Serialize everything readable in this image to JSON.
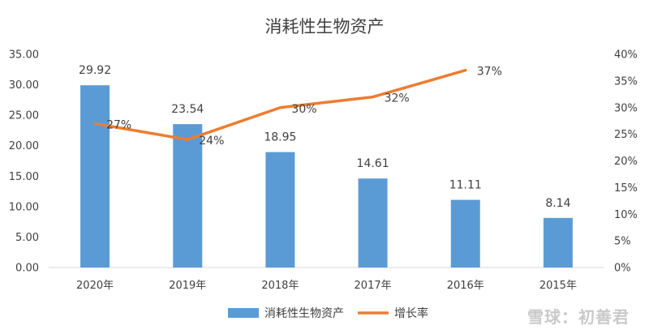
{
  "chart_data": {
    "type": "bar",
    "title": "消耗性生物资产",
    "categories": [
      "2020年",
      "2019年",
      "2018年",
      "2017年",
      "2016年",
      "2015年"
    ],
    "series": [
      {
        "name": "消耗性生物资产",
        "type": "bar",
        "axis": "left",
        "values": [
          29.92,
          23.54,
          18.95,
          14.61,
          11.11,
          8.14
        ],
        "labels": [
          "29.92",
          "23.54",
          "18.95",
          "14.61",
          "11.11",
          "8.14"
        ],
        "color": "#5B9BD5"
      },
      {
        "name": "增长率",
        "type": "line",
        "axis": "right",
        "values": [
          27,
          24,
          30,
          32,
          37,
          null
        ],
        "labels": [
          "27%",
          "24%",
          "30%",
          "32%",
          "37%",
          ""
        ],
        "color": "#ED7D31"
      }
    ],
    "ylim_left": [
      0,
      35
    ],
    "yticks_left": [
      "0.00",
      "5.00",
      "10.00",
      "15.00",
      "20.00",
      "25.00",
      "30.00",
      "35.00"
    ],
    "ylim_right": [
      0,
      40
    ],
    "yticks_right": [
      "0%",
      "5%",
      "10%",
      "15%",
      "20%",
      "25%",
      "30%",
      "35%",
      "40%"
    ],
    "grid": false,
    "legend": "bottom"
  },
  "watermark": "雪球：初善君"
}
